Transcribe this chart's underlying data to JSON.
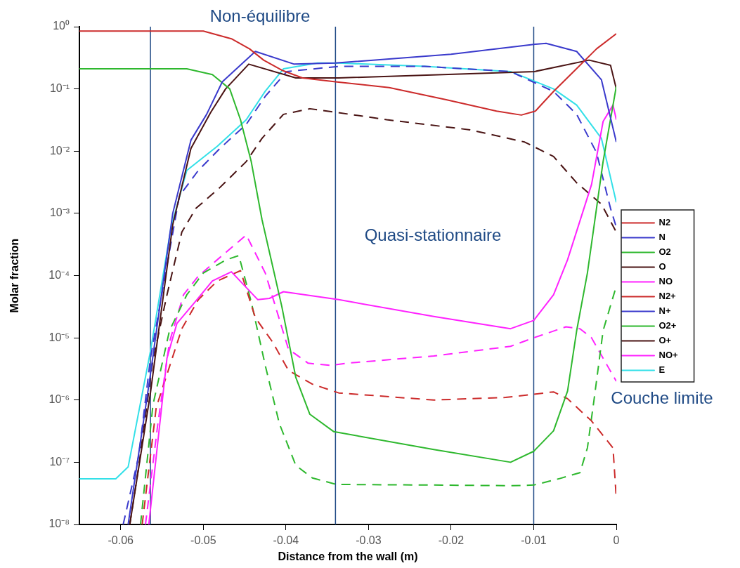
{
  "chart_data": {
    "type": "line",
    "xlabel": "Distance from the wall (m)",
    "ylabel": "Molar fraction",
    "xlim": [
      -0.065,
      0
    ],
    "xticks": [
      -0.06,
      -0.05,
      -0.04,
      -0.03,
      -0.02,
      -0.01,
      0
    ],
    "ylim": [
      1e-08,
      1
    ],
    "log": "y",
    "yticks": [
      {
        "value": 1,
        "label": "10⁰"
      },
      {
        "value": 0.1,
        "label": "10⁻¹"
      },
      {
        "value": 0.01,
        "label": "10⁻²"
      },
      {
        "value": 0.001,
        "label": "10⁻³"
      },
      {
        "value": 0.0001,
        "label": "10⁻⁴"
      },
      {
        "value": 1e-05,
        "label": "10⁻⁵"
      },
      {
        "value": 1e-06,
        "label": "10⁻⁶"
      },
      {
        "value": 1e-07,
        "label": "10⁻⁷"
      },
      {
        "value": 1e-08,
        "label": "10⁻⁸"
      }
    ],
    "grid": false,
    "legend": "right",
    "marker": "none",
    "series": [
      {
        "name": "N2",
        "color": "#cc2b2b",
        "line_style": "solid",
        "x": [
          -0.065,
          -0.05,
          -0.0466,
          -0.0444,
          -0.0427,
          -0.0405,
          -0.038,
          -0.034,
          -0.0275,
          -0.0206,
          -0.0145,
          -0.0115,
          -0.0098,
          -0.0076,
          -0.005,
          -0.0024,
          0
        ],
        "values": [
          0.85,
          0.85,
          0.64,
          0.44,
          0.29,
          0.2,
          0.15,
          0.13,
          0.105,
          0.067,
          0.044,
          0.038,
          0.044,
          0.091,
          0.2,
          0.44,
          0.77
        ]
      },
      {
        "name": "N",
        "color": "#3a3acc",
        "line_style": "solid",
        "x": [
          -0.0591,
          -0.0565,
          -0.0537,
          -0.0515,
          -0.0496,
          -0.0477,
          -0.0437,
          -0.039,
          -0.034,
          -0.02,
          -0.01,
          -0.0085,
          -0.0048,
          -0.0018,
          0
        ],
        "values": [
          1e-08,
          2.1e-06,
          0.001,
          0.015,
          0.039,
          0.13,
          0.4,
          0.25,
          0.26,
          0.36,
          0.52,
          0.54,
          0.4,
          0.14,
          0.014
        ]
      },
      {
        "name": "O2",
        "color": "#2eb82e",
        "line_style": "solid",
        "x": [
          -0.065,
          -0.052,
          -0.0489,
          -0.0468,
          -0.0455,
          -0.0442,
          -0.0429,
          -0.0416,
          -0.0405,
          -0.0388,
          -0.0371,
          -0.0342,
          -0.0221,
          -0.0128,
          -0.01,
          -0.0076,
          -0.0059,
          -0.0048,
          -0.0035,
          -0.0016,
          0
        ],
        "values": [
          0.21,
          0.21,
          0.17,
          0.1,
          0.032,
          0.0068,
          0.0008,
          0.00014,
          3.2e-05,
          2.3e-06,
          5.9e-07,
          3.1e-07,
          1.6e-07,
          1e-07,
          1.5e-07,
          3.2e-07,
          1.4e-06,
          1.3e-05,
          0.00011,
          0.0068,
          0.11
        ]
      },
      {
        "name": "O",
        "color": "#4a1414",
        "line_style": "solid",
        "x": [
          -0.0589,
          -0.0564,
          -0.0537,
          -0.0515,
          -0.0491,
          -0.0473,
          -0.0445,
          -0.0388,
          -0.0336,
          -0.0099,
          -0.0033,
          -0.0007,
          0
        ],
        "values": [
          1e-08,
          1.3e-06,
          0.00066,
          0.011,
          0.042,
          0.1,
          0.25,
          0.15,
          0.15,
          0.19,
          0.29,
          0.24,
          0.1
        ]
      },
      {
        "name": "NO",
        "color": "#ff22ff",
        "line_style": "solid",
        "x": [
          -0.0566,
          -0.0544,
          -0.0532,
          -0.0512,
          -0.0489,
          -0.0466,
          -0.0434,
          -0.042,
          -0.0403,
          -0.0336,
          -0.0221,
          -0.0128,
          -0.01,
          -0.0076,
          -0.0059,
          -0.003,
          -0.0016,
          -0.0004,
          0
        ],
        "values": [
          1e-08,
          4.7e-06,
          1.7e-05,
          3.5e-05,
          8.2e-05,
          0.000115,
          4.1e-05,
          4.3e-05,
          5.5e-05,
          4.1e-05,
          2.2e-05,
          1.4e-05,
          1.9e-05,
          4.9e-05,
          0.00018,
          0.0029,
          0.03,
          0.055,
          0.032
        ]
      },
      {
        "name": "N2+",
        "color": "#cc2b2b",
        "line_style": "dashed",
        "x": [
          -0.0574,
          -0.0557,
          -0.0526,
          -0.0506,
          -0.0483,
          -0.0455,
          -0.0437,
          -0.0416,
          -0.0397,
          -0.0368,
          -0.0336,
          -0.0221,
          -0.0134,
          -0.0076,
          -0.0059,
          -0.003,
          -0.0004,
          0
        ],
        "values": [
          1e-08,
          7.6e-07,
          1.4e-05,
          4.1e-05,
          8.2e-05,
          0.00012,
          2.1e-05,
          8.5e-06,
          3e-06,
          1.8e-06,
          1.3e-06,
          1e-06,
          1.1e-06,
          1.35e-06,
          1.05e-06,
          4.6e-07,
          1.7e-07,
          2.6e-08
        ]
      },
      {
        "name": "N+",
        "color": "#3a3acc",
        "line_style": "dashed",
        "x": [
          -0.0597,
          -0.0578,
          -0.0564,
          -0.0529,
          -0.0506,
          -0.048,
          -0.0448,
          -0.0425,
          -0.0399,
          -0.0336,
          -0.0232,
          -0.0128,
          -0.0076,
          -0.0048,
          -0.0024,
          -0.0007,
          0
        ],
        "values": [
          1e-08,
          1.3e-07,
          4.7e-06,
          0.0019,
          0.0049,
          0.011,
          0.027,
          0.076,
          0.19,
          0.23,
          0.23,
          0.19,
          0.091,
          0.039,
          0.0095,
          0.0012,
          0.0006
        ]
      },
      {
        "name": "O2+",
        "color": "#2eb82e",
        "line_style": "dashed",
        "x": [
          -0.0576,
          -0.0561,
          -0.0541,
          -0.052,
          -0.05,
          -0.0472,
          -0.0457,
          -0.0442,
          -0.0425,
          -0.0408,
          -0.0388,
          -0.0368,
          -0.0339,
          -0.0221,
          -0.0128,
          -0.01,
          -0.007,
          -0.0044,
          -0.0035,
          -0.0027,
          -0.0016,
          0
        ],
        "values": [
          1e-08,
          8.3e-07,
          1.3e-05,
          4.9e-05,
          0.00011,
          0.00018,
          0.00021,
          3.8e-05,
          3.6e-06,
          4.2e-07,
          8.9e-08,
          5.6e-08,
          4.4e-08,
          4.3e-08,
          4.2e-08,
          4.3e-08,
          5.4e-08,
          6.8e-08,
          1.7e-07,
          1e-06,
          1.3e-05,
          6.8e-05
        ]
      },
      {
        "name": "O+",
        "color": "#4a1414",
        "line_style": "dashed",
        "x": [
          -0.0589,
          -0.0578,
          -0.0561,
          -0.0544,
          -0.0526,
          -0.0509,
          -0.048,
          -0.0448,
          -0.0429,
          -0.0403,
          -0.0371,
          -0.0339,
          -0.0278,
          -0.0177,
          -0.0111,
          -0.0076,
          -0.0048,
          -0.0018,
          0
        ],
        "values": [
          1e-08,
          8.9e-08,
          4.4e-06,
          4.9e-05,
          0.0005,
          0.0012,
          0.0026,
          0.0068,
          0.016,
          0.039,
          0.048,
          0.042,
          0.032,
          0.022,
          0.014,
          0.0082,
          0.0031,
          0.0014,
          0.0005
        ]
      },
      {
        "name": "NO+",
        "color": "#ff22ff",
        "line_style": "dashed",
        "x": [
          -0.057,
          -0.0555,
          -0.0541,
          -0.0524,
          -0.0506,
          -0.0483,
          -0.0448,
          -0.0425,
          -0.0397,
          -0.0373,
          -0.0345,
          -0.0327,
          -0.0221,
          -0.0128,
          -0.01,
          -0.0061,
          -0.0044,
          -0.003,
          -0.0016,
          0
        ],
        "values": [
          1e-08,
          4.2e-07,
          8.5e-06,
          4.9e-05,
          9.8e-05,
          0.00018,
          0.00045,
          0.00011,
          6.6e-06,
          3.9e-06,
          3.6e-06,
          3.9e-06,
          5.1e-06,
          7.3e-06,
          1e-05,
          1.5e-05,
          1.4e-05,
          1e-05,
          4.7e-06,
          2e-06
        ]
      },
      {
        "name": "E",
        "color": "#33e0e8",
        "line_style": "solid",
        "x": [
          -0.065,
          -0.0606,
          -0.0591,
          -0.0564,
          -0.0539,
          -0.052,
          -0.0483,
          -0.0448,
          -0.0425,
          -0.0403,
          -0.0362,
          -0.0336,
          -0.0232,
          -0.0128,
          -0.0076,
          -0.0048,
          -0.0018,
          0
        ],
        "values": [
          5.4e-08,
          5.4e-08,
          8.4e-08,
          6.1e-06,
          0.0006,
          0.0049,
          0.012,
          0.032,
          0.092,
          0.21,
          0.26,
          0.26,
          0.23,
          0.19,
          0.1,
          0.055,
          0.016,
          0.0015
        ]
      }
    ],
    "ref_lines": [
      {
        "axis": "x",
        "value": -0.0564,
        "color": "#1f4a85"
      },
      {
        "axis": "x",
        "value": -0.034,
        "color": "#1f4a85"
      },
      {
        "axis": "x",
        "value": -0.01,
        "color": "#1f4a85"
      }
    ],
    "annotations": [
      "Non-équilibre",
      "Quasi-stationnaire",
      "Couche limite"
    ]
  }
}
